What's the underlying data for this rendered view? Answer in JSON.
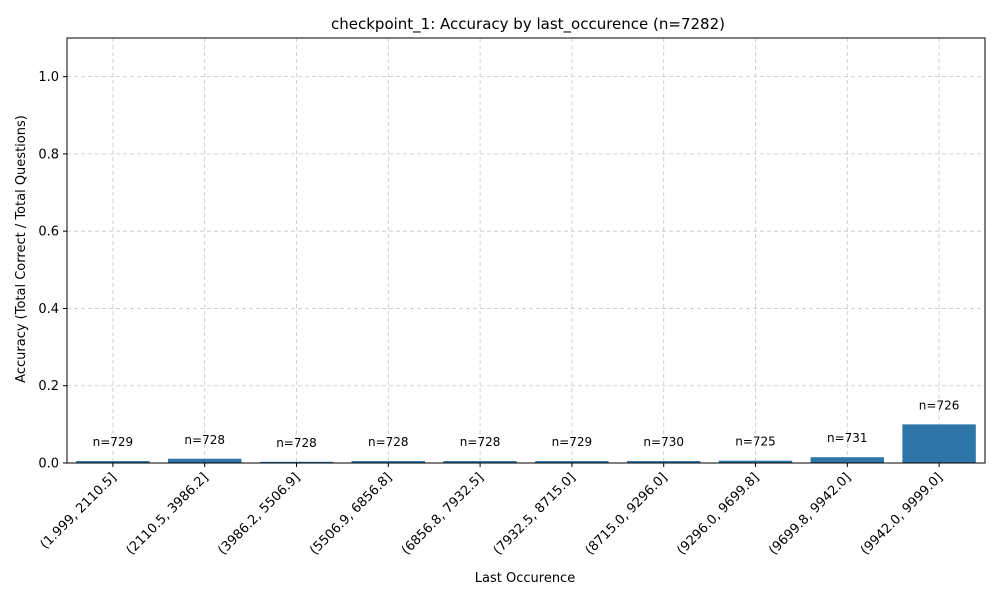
{
  "chart_data": {
    "type": "bar",
    "title": "checkpoint_1: Accuracy by last_occurence (n=7282)",
    "xlabel": "Last Occurence",
    "ylabel": "Accuracy (Total Correct / Total Questions)",
    "ylim": [
      0,
      1.1
    ],
    "yticks": [
      "0.0",
      "0.2",
      "0.4",
      "0.6",
      "0.8",
      "1.0"
    ],
    "grid": true,
    "bar_color": "#2e75a8",
    "categories": [
      "(1.999, 2110.5]",
      "(2110.5, 3986.2]",
      "(3986.2, 5506.9]",
      "(5506.9, 6856.8]",
      "(6856.8, 7932.5]",
      "(7932.5, 8715.0]",
      "(8715.0, 9296.0]",
      "(9296.0, 9699.8]",
      "(9699.8, 9942.0]",
      "(9942.0, 9999.0]"
    ],
    "values": [
      0.005,
      0.011,
      0.003,
      0.005,
      0.005,
      0.005,
      0.005,
      0.006,
      0.015,
      0.1
    ],
    "count_labels": [
      "n=729",
      "n=728",
      "n=728",
      "n=728",
      "n=728",
      "n=729",
      "n=730",
      "n=725",
      "n=731",
      "n=726"
    ]
  }
}
